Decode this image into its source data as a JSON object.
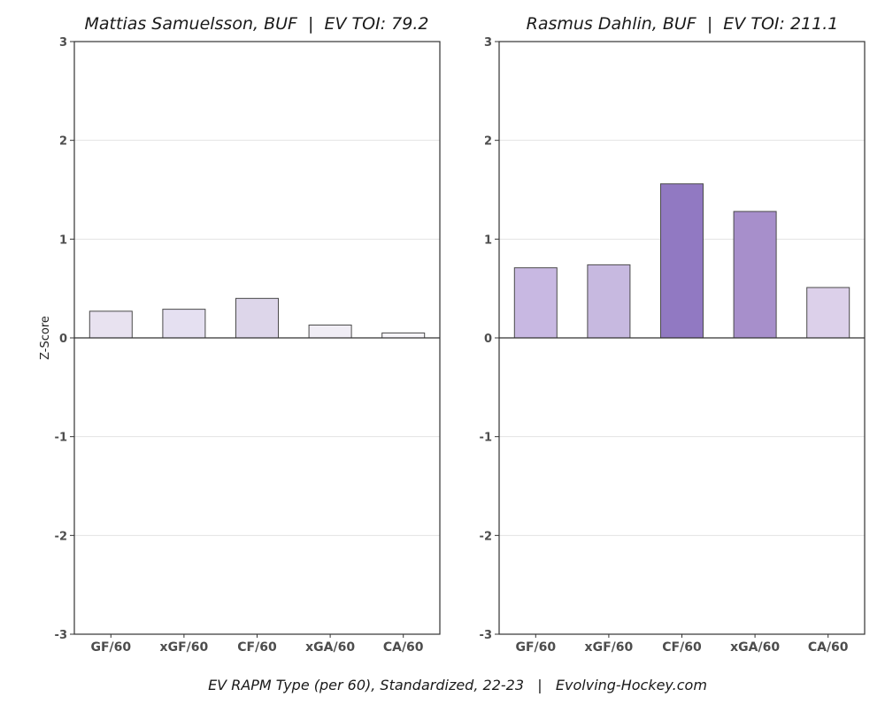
{
  "caption": "EV RAPM Type (per 60), Standardized, 22-23   |   Evolving-Hockey.com",
  "chart_data": [
    {
      "type": "bar",
      "title": "Mattias Samuelsson, BUF  |  EV TOI: 79.2",
      "ylabel": "Z-Score",
      "xlabel": "",
      "categories": [
        "GF/60",
        "xGF/60",
        "CF/60",
        "xGA/60",
        "CA/60"
      ],
      "values": [
        0.27,
        0.29,
        0.4,
        0.13,
        0.05
      ],
      "colors": [
        "#e8e2f0",
        "#e5e0f1",
        "#ddd6ea",
        "#f0edf5",
        "#f7f5fa"
      ],
      "ylim": [
        -3,
        3
      ],
      "yticks": [
        -3,
        -2,
        -1,
        0,
        1,
        2,
        3
      ],
      "grid": true
    },
    {
      "type": "bar",
      "title": "Rasmus Dahlin, BUF  |  EV TOI: 211.1",
      "ylabel": "",
      "xlabel": "",
      "categories": [
        "GF/60",
        "xGF/60",
        "CF/60",
        "xGA/60",
        "CA/60"
      ],
      "values": [
        0.71,
        0.74,
        1.56,
        1.28,
        0.51
      ],
      "colors": [
        "#c8b8e2",
        "#c7b9e0",
        "#9179c2",
        "#a78fcb",
        "#dcd0ea"
      ],
      "ylim": [
        -3,
        3
      ],
      "yticks": [
        -3,
        -2,
        -1,
        0,
        1,
        2,
        3
      ],
      "grid": true
    }
  ]
}
